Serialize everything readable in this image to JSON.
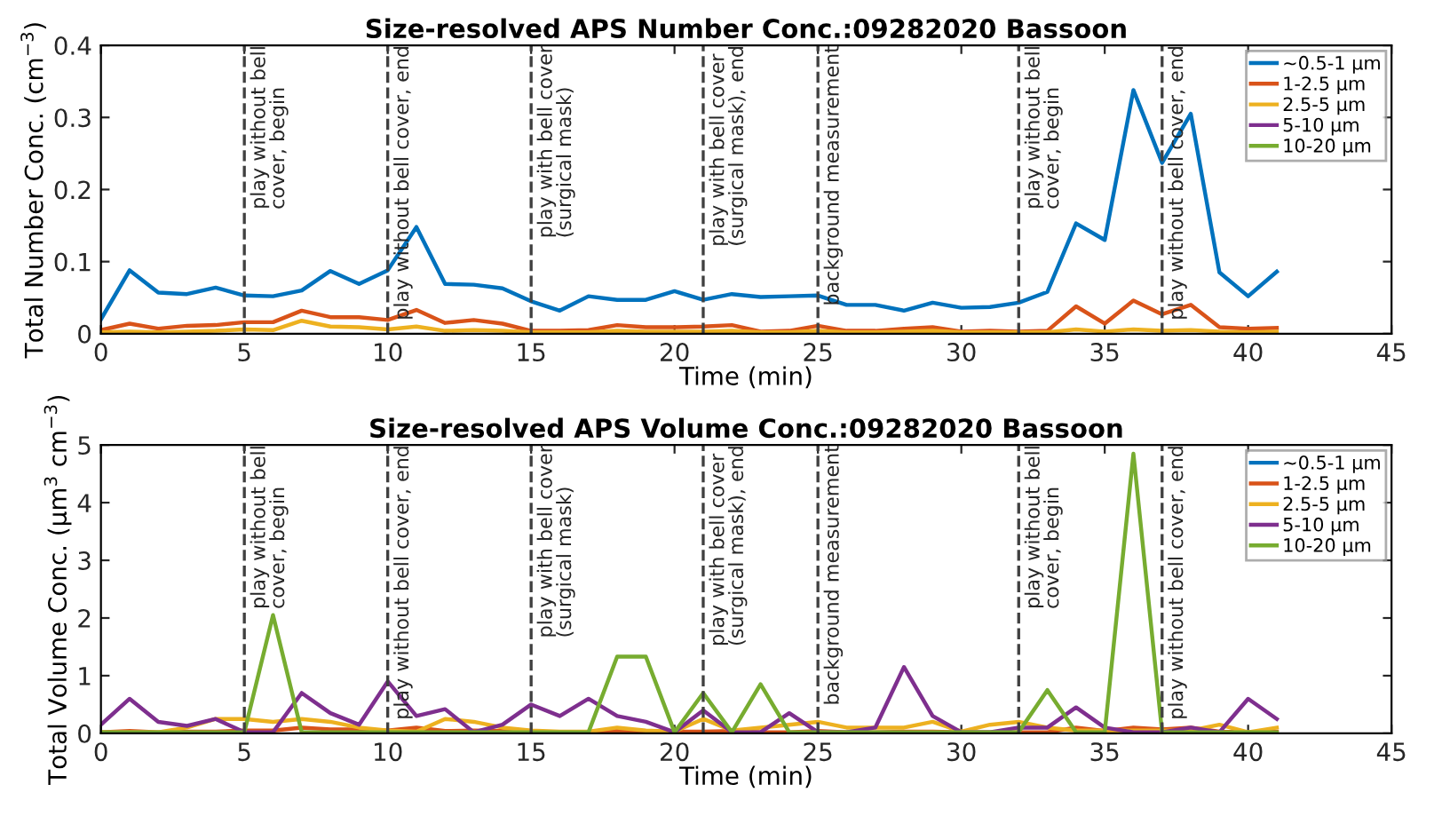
{
  "chart_data": [
    {
      "type": "line",
      "title": "Size-resolved APS Number Conc.:09282020 Bassoon",
      "xlabel": "Time (min)",
      "ylabel": "Total Number Conc. (cm$^{−3}$)",
      "x": [
        0,
        1,
        2,
        3,
        4,
        5,
        6,
        7,
        8,
        9,
        10,
        11,
        12,
        13,
        14,
        15,
        16,
        17,
        18,
        19,
        20,
        21,
        22,
        23,
        24,
        25,
        26,
        27,
        28,
        29,
        30,
        31,
        32,
        33,
        34,
        35,
        36,
        37,
        38,
        39,
        40,
        41
      ],
      "xlim": [
        0,
        45
      ],
      "xticks": [
        0,
        5,
        10,
        15,
        20,
        25,
        30,
        35,
        40,
        45
      ],
      "ylim": [
        0,
        0.4
      ],
      "yticks": [
        0,
        0.1,
        0.2,
        0.3,
        0.4
      ],
      "grid": false,
      "legend": "top right",
      "line_style": "solid",
      "series": [
        {
          "name": "~0.5-1 μm",
          "color": "#0072bd",
          "values": [
            0.02,
            0.088,
            0.057,
            0.055,
            0.064,
            0.053,
            0.052,
            0.06,
            0.087,
            0.069,
            0.088,
            0.148,
            0.069,
            0.068,
            0.063,
            0.045,
            0.032,
            0.052,
            0.047,
            0.047,
            0.059,
            0.047,
            0.055,
            0.051,
            0.052,
            0.053,
            0.04,
            0.04,
            0.032,
            0.043,
            0.036,
            0.037,
            0.043,
            0.058,
            0.153,
            0.13,
            0.338,
            0.237,
            0.305,
            0.085,
            0.052,
            0.086
          ]
        },
        {
          "name": "1-2.5 μm",
          "color": "#d95319",
          "values": [
            0.005,
            0.014,
            0.007,
            0.011,
            0.012,
            0.016,
            0.016,
            0.032,
            0.023,
            0.023,
            0.019,
            0.033,
            0.015,
            0.019,
            0.014,
            0.004,
            0.004,
            0.005,
            0.012,
            0.009,
            0.009,
            0.01,
            0.012,
            0.003,
            0.004,
            0.011,
            0.004,
            0.004,
            0.007,
            0.009,
            0.003,
            0.004,
            0.003,
            0.004,
            0.038,
            0.014,
            0.046,
            0.027,
            0.04,
            0.009,
            0.007,
            0.008
          ]
        },
        {
          "name": "2.5-5 μm",
          "color": "#edb120",
          "values": [
            0.002,
            0.003,
            0.002,
            0.003,
            0.004,
            0.006,
            0.005,
            0.018,
            0.01,
            0.009,
            0.006,
            0.01,
            0.004,
            0.005,
            0.004,
            0.002,
            0.002,
            0.002,
            0.004,
            0.003,
            0.003,
            0.003,
            0.004,
            0.002,
            0.002,
            0.004,
            0.002,
            0.002,
            0.003,
            0.004,
            0.002,
            0.002,
            0.002,
            0.002,
            0.006,
            0.003,
            0.006,
            0.004,
            0.005,
            0.003,
            0.002,
            0.003
          ]
        },
        {
          "name": "5-10 μm",
          "color": "#7e2f8e",
          "values": [
            null,
            null,
            null,
            null,
            null,
            null,
            null,
            null,
            null,
            null,
            null,
            null,
            null,
            null,
            null,
            null,
            null,
            null,
            null,
            null,
            null,
            null,
            null,
            null,
            null,
            null,
            null,
            null,
            null,
            null,
            null,
            null,
            null,
            null,
            null,
            null,
            null,
            null,
            null,
            null,
            null,
            null
          ]
        },
        {
          "name": "10-20 μm",
          "color": "#77ac30",
          "values": [
            null,
            null,
            null,
            null,
            null,
            null,
            null,
            null,
            null,
            null,
            null,
            null,
            null,
            null,
            null,
            null,
            null,
            null,
            null,
            null,
            null,
            null,
            null,
            null,
            null,
            null,
            null,
            null,
            null,
            null,
            null,
            null,
            null,
            null,
            null,
            null,
            null,
            null,
            null,
            null,
            null,
            null
          ]
        }
      ],
      "ref_lines": [
        {
          "axis": "x",
          "value": 5,
          "label": "play without bell cover, begin",
          "color": "#404040",
          "line_style": "dashed"
        },
        {
          "axis": "x",
          "value": 10,
          "label": "play without bell cover, end",
          "color": "#404040",
          "line_style": "dashed"
        },
        {
          "axis": "x",
          "value": 15,
          "label": "play with bell cover (surgical mask)",
          "color": "#404040",
          "line_style": "dashed"
        },
        {
          "axis": "x",
          "value": 21,
          "label": "play with bell cover (surgical mask), end",
          "color": "#404040",
          "line_style": "dashed"
        },
        {
          "axis": "x",
          "value": 25,
          "label": "background measurement",
          "color": "#404040",
          "line_style": "dashed"
        },
        {
          "axis": "x",
          "value": 32,
          "label": "play without bell cover, begin",
          "color": "#404040",
          "line_style": "dashed"
        },
        {
          "axis": "x",
          "value": 37,
          "label": "play without bell cover, end",
          "color": "#404040",
          "line_style": "dashed"
        }
      ]
    },
    {
      "type": "line",
      "title": "Size-resolved APS Volume Conc.:09282020 Bassoon",
      "xlabel": "Time (min)",
      "ylabel": "Total Volume Conc. (μm$^{3}$ cm$^{−3}$)",
      "x": [
        0,
        1,
        2,
        3,
        4,
        5,
        6,
        7,
        8,
        9,
        10,
        11,
        12,
        13,
        14,
        15,
        16,
        17,
        18,
        19,
        20,
        21,
        22,
        23,
        24,
        25,
        26,
        27,
        28,
        29,
        30,
        31,
        32,
        33,
        34,
        35,
        36,
        37,
        38,
        39,
        40,
        41
      ],
      "xlim": [
        0,
        45
      ],
      "xticks": [
        0,
        5,
        10,
        15,
        20,
        25,
        30,
        35,
        40,
        45
      ],
      "ylim": [
        0,
        5
      ],
      "yticks": [
        0,
        1,
        2,
        3,
        4,
        5
      ],
      "grid": false,
      "legend": "top right",
      "line_style": "solid",
      "series": [
        {
          "name": "~0.5-1 μm",
          "color": "#0072bd",
          "values": [
            null,
            null,
            null,
            null,
            null,
            null,
            null,
            null,
            null,
            null,
            null,
            null,
            null,
            null,
            null,
            null,
            null,
            null,
            null,
            null,
            null,
            null,
            null,
            null,
            null,
            null,
            null,
            null,
            null,
            null,
            null,
            null,
            null,
            null,
            null,
            null,
            null,
            null,
            null,
            null,
            null,
            null
          ]
        },
        {
          "name": "1-2.5 μm",
          "color": "#d95319",
          "values": [
            0.02,
            0.04,
            0.02,
            0.03,
            0.03,
            0.05,
            0.05,
            0.1,
            0.07,
            0.07,
            0.05,
            0.1,
            0.04,
            0.05,
            0.04,
            0.02,
            0.02,
            0.02,
            0.04,
            0.03,
            0.03,
            0.03,
            0.04,
            0.02,
            0.02,
            0.04,
            0.02,
            0.02,
            0.03,
            0.03,
            0.02,
            0.02,
            0.02,
            0.02,
            0.1,
            0.04,
            0.1,
            0.07,
            0.1,
            0.03,
            0.02,
            0.03
          ]
        },
        {
          "name": "2.5-5 μm",
          "color": "#edb120",
          "values": [
            0.02,
            0.02,
            0.02,
            0.1,
            0.25,
            0.25,
            0.2,
            0.25,
            0.2,
            0.1,
            0.05,
            0.03,
            0.25,
            0.2,
            0.1,
            0.05,
            0.03,
            0.03,
            0.1,
            0.05,
            0.03,
            0.25,
            0.05,
            0.1,
            0.15,
            0.2,
            0.1,
            0.1,
            0.1,
            0.2,
            0.03,
            0.15,
            0.2,
            0.1,
            0.05,
            0.05,
            0.05,
            0.05,
            0.05,
            0.15,
            0.02,
            0.1
          ]
        },
        {
          "name": "5-10 μm",
          "color": "#7e2f8e",
          "values": [
            0.15,
            0.6,
            0.2,
            0.13,
            0.25,
            0.02,
            0.02,
            0.7,
            0.35,
            0.15,
            0.9,
            0.3,
            0.42,
            0.02,
            0.15,
            0.5,
            0.3,
            0.6,
            0.3,
            0.2,
            0.02,
            0.4,
            0.02,
            0.02,
            0.35,
            0.02,
            0.02,
            0.1,
            1.15,
            0.3,
            0.02,
            0.02,
            0.1,
            0.1,
            0.45,
            0.1,
            0.02,
            0.02,
            0.1,
            0.02,
            0.6,
            0.25
          ]
        },
        {
          "name": "10-20 μm",
          "color": "#77ac30",
          "values": [
            0.02,
            0.02,
            0.02,
            0.02,
            0.02,
            0.02,
            2.05,
            0.02,
            0.02,
            0.02,
            0.02,
            0.02,
            0.02,
            0.02,
            0.02,
            0.02,
            0.02,
            0.02,
            1.33,
            1.33,
            0.02,
            0.7,
            0.02,
            0.85,
            0.02,
            0.02,
            0.02,
            0.02,
            0.02,
            0.02,
            0.02,
            0.02,
            0.02,
            0.75,
            0.02,
            0.02,
            4.85,
            0.02,
            0.02,
            0.02,
            0.02,
            0.02
          ]
        }
      ],
      "ref_lines": [
        {
          "axis": "x",
          "value": 5,
          "label": "play without bell cover, begin",
          "color": "#404040",
          "line_style": "dashed"
        },
        {
          "axis": "x",
          "value": 10,
          "label": "play without bell cover, end",
          "color": "#404040",
          "line_style": "dashed"
        },
        {
          "axis": "x",
          "value": 15,
          "label": "play with bell cover (surgical mask)",
          "color": "#404040",
          "line_style": "dashed"
        },
        {
          "axis": "x",
          "value": 21,
          "label": "play with bell cover (surgical mask), end",
          "color": "#404040",
          "line_style": "dashed"
        },
        {
          "axis": "x",
          "value": 25,
          "label": "background measurement",
          "color": "#404040",
          "line_style": "dashed"
        },
        {
          "axis": "x",
          "value": 32,
          "label": "play without bell cover, begin",
          "color": "#404040",
          "line_style": "dashed"
        },
        {
          "axis": "x",
          "value": 37,
          "label": "play without bell cover, end",
          "color": "#404040",
          "line_style": "dashed"
        }
      ]
    }
  ]
}
